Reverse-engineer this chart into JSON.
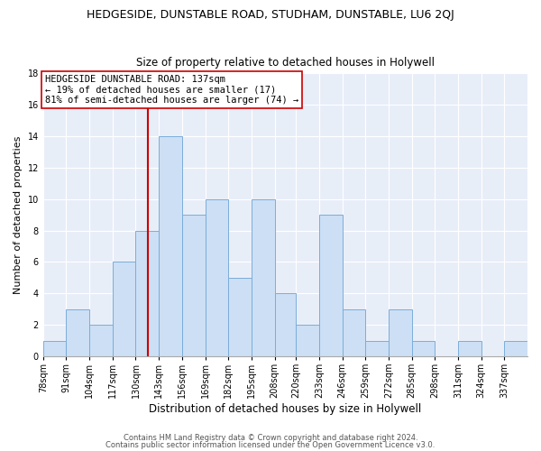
{
  "title": "HEDGESIDE, DUNSTABLE ROAD, STUDHAM, DUNSTABLE, LU6 2QJ",
  "subtitle": "Size of property relative to detached houses in Holywell",
  "xlabel": "Distribution of detached houses by size in Holywell",
  "ylabel": "Number of detached properties",
  "bin_labels": [
    "78sqm",
    "91sqm",
    "104sqm",
    "117sqm",
    "130sqm",
    "143sqm",
    "156sqm",
    "169sqm",
    "182sqm",
    "195sqm",
    "208sqm",
    "220sqm",
    "233sqm",
    "246sqm",
    "259sqm",
    "272sqm",
    "285sqm",
    "298sqm",
    "311sqm",
    "324sqm",
    "337sqm"
  ],
  "bin_edges": [
    78,
    91,
    104,
    117,
    130,
    143,
    156,
    169,
    182,
    195,
    208,
    220,
    233,
    246,
    259,
    272,
    285,
    298,
    311,
    324,
    337,
    350
  ],
  "counts": [
    1,
    3,
    2,
    6,
    8,
    14,
    9,
    10,
    5,
    10,
    4,
    2,
    9,
    3,
    1,
    3,
    1,
    0,
    1,
    0,
    1
  ],
  "bar_color": "#ccdff5",
  "bar_edge_color": "#7aadda",
  "ref_line_x": 137,
  "ref_line_color": "#cc0000",
  "annotation_text": "HEDGESIDE DUNSTABLE ROAD: 137sqm\n← 19% of detached houses are smaller (17)\n81% of semi-detached houses are larger (74) →",
  "annotation_box_facecolor": "#ffffff",
  "annotation_box_edgecolor": "#cc0000",
  "ylim": [
    0,
    18
  ],
  "yticks": [
    0,
    2,
    4,
    6,
    8,
    10,
    12,
    14,
    16,
    18
  ],
  "footer1": "Contains HM Land Registry data © Crown copyright and database right 2024.",
  "footer2": "Contains public sector information licensed under the Open Government Licence v3.0.",
  "fig_facecolor": "#ffffff",
  "plot_facecolor": "#e8eef8",
  "grid_color": "#ffffff",
  "title_fontsize": 9,
  "subtitle_fontsize": 8.5,
  "xlabel_fontsize": 8.5,
  "ylabel_fontsize": 8,
  "tick_fontsize": 7,
  "annot_fontsize": 7.5,
  "footer_fontsize": 6,
  "footer_color": "#555555"
}
